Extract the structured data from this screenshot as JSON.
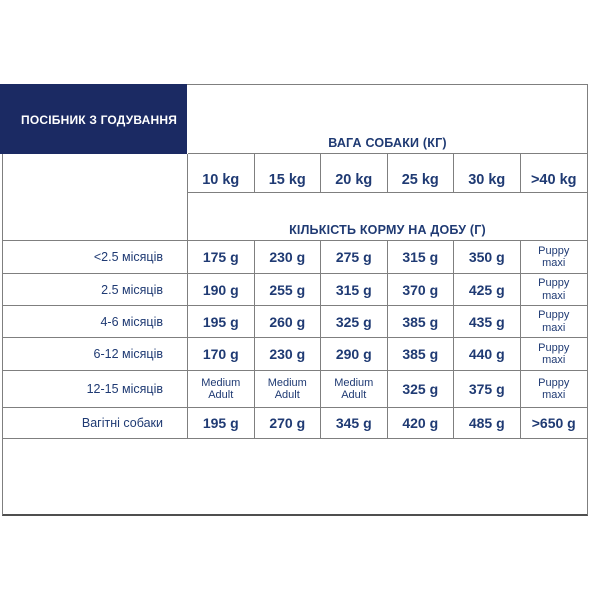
{
  "colors": {
    "brand_navy": "#1b2a63",
    "text_navy": "#1f3a73",
    "border_gray": "#7f7f7f",
    "background": "#ffffff"
  },
  "title_box": {
    "label": "ПОСІБНИК З ГОДУВАННЯ"
  },
  "table": {
    "weight_header": "ВАГА СОБАКИ (КГ)",
    "amount_header": "КІЛЬКІСТЬ КОРМУ НА ДОБУ (Г)",
    "weight_columns": [
      "10 kg",
      "15 kg",
      "20 kg",
      "25 kg",
      "30 kg",
      ">40 kg"
    ],
    "rows": [
      {
        "label": "<2.5 місяців",
        "values": [
          "175 g",
          "230 g",
          "275 g",
          "315 g",
          "350 g",
          "Puppy\nmaxi"
        ]
      },
      {
        "label": "2.5 місяців",
        "values": [
          "190 g",
          "255 g",
          "315 g",
          "370 g",
          "425 g",
          "Puppy\nmaxi"
        ]
      },
      {
        "label": "4-6 місяців",
        "values": [
          "195 g",
          "260 g",
          "325 g",
          "385 g",
          "435 g",
          "Puppy\nmaxi"
        ]
      },
      {
        "label": "6-12 місяців",
        "values": [
          "170 g",
          "230 g",
          "290 g",
          "385 g",
          "440 g",
          "Puppy\nmaxi"
        ]
      },
      {
        "label": "12-15 місяців",
        "values": [
          "Medium\nAdult",
          "Medium\nAdult",
          "Medium\nAdult",
          "325 g",
          "375 g",
          "Puppy\nmaxi"
        ]
      },
      {
        "label": "Вагітні собаки",
        "values": [
          "195 g",
          "270 g",
          "345 g",
          "420 g",
          "485 g",
          ">650 g"
        ]
      }
    ]
  }
}
